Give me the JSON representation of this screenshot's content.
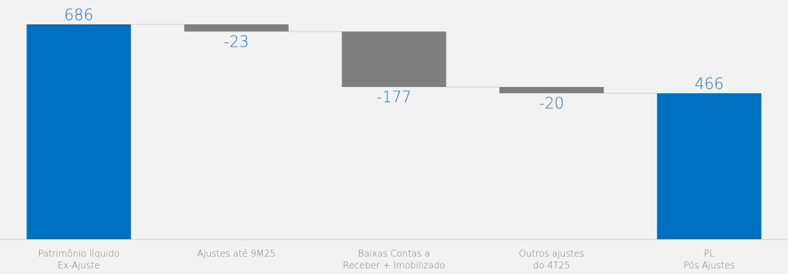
{
  "chart_data": {
    "type": "waterfall",
    "categories": [
      [
        "Patrimônio líquido",
        "Ex-Ajuste"
      ],
      [
        "Ajustes até 9M25"
      ],
      [
        "Baixas Contas a",
        "Receber + Imobilizado"
      ],
      [
        "Outros ajustes",
        "do 4T25"
      ],
      [
        "PL",
        "Pós Ajustes"
      ]
    ],
    "values": [
      686,
      -23,
      -177,
      -20,
      466
    ],
    "value_labels": [
      "686",
      "-23",
      "-177",
      "-20",
      "466"
    ],
    "kinds": [
      "total",
      "delta",
      "delta",
      "delta",
      "total"
    ],
    "colors": {
      "total": "#0070c0",
      "delta": "#7f7f7f",
      "label": "#1f70c1",
      "axis": "#d9d9d9"
    },
    "ylim": [
      0,
      700
    ]
  }
}
